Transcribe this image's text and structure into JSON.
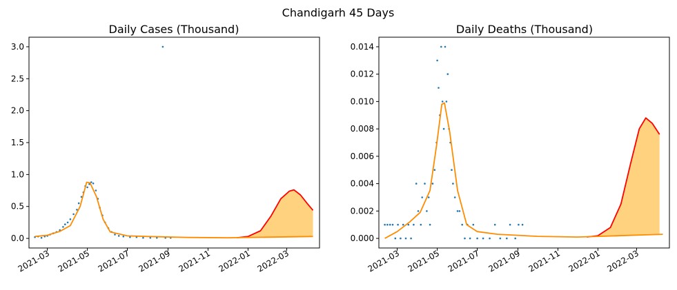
{
  "figure": {
    "suptitle": "Chandigarh 45 Days"
  },
  "colors": {
    "observed": "#1f77b4",
    "fit": "#ff8c00",
    "forecast": "#ff0000",
    "band": "#ffa500"
  },
  "chart_data": [
    {
      "type": "scatter",
      "title": "Daily Cases (Thousand)",
      "xlabel": "",
      "ylabel": "",
      "x_range": [
        "2021-02-01",
        "2022-04-20"
      ],
      "ylim": [
        -0.15,
        3.15
      ],
      "yticks": [
        0.0,
        0.5,
        1.0,
        1.5,
        2.0,
        2.5,
        3.0
      ],
      "ytick_labels": [
        "0.0",
        "0.5",
        "1.0",
        "1.5",
        "2.0",
        "2.5",
        "3.0"
      ],
      "xticks": [
        "2021-03-01",
        "2021-05-01",
        "2021-07-01",
        "2021-09-01",
        "2021-11-01",
        "2022-01-01",
        "2022-03-01"
      ],
      "xtick_labels": [
        "2021-03",
        "2021-05",
        "2021-07",
        "2021-09",
        "2021-11",
        "2022-01",
        "2022-03"
      ],
      "grid": false,
      "scatter_points": [
        [
          "2021-02-10",
          0.02
        ],
        [
          "2021-02-15",
          0.03
        ],
        [
          "2021-02-20",
          0.01
        ],
        [
          "2021-02-25",
          0.03
        ],
        [
          "2021-03-01",
          0.04
        ],
        [
          "2021-03-05",
          0.06
        ],
        [
          "2021-03-10",
          0.08
        ],
        [
          "2021-03-15",
          0.1
        ],
        [
          "2021-03-20",
          0.13
        ],
        [
          "2021-03-25",
          0.18
        ],
        [
          "2021-03-28",
          0.22
        ],
        [
          "2021-04-01",
          0.25
        ],
        [
          "2021-04-05",
          0.3
        ],
        [
          "2021-04-10",
          0.38
        ],
        [
          "2021-04-15",
          0.45
        ],
        [
          "2021-04-18",
          0.55
        ],
        [
          "2021-04-22",
          0.65
        ],
        [
          "2021-04-25",
          0.72
        ],
        [
          "2021-04-28",
          0.82
        ],
        [
          "2021-05-01",
          0.8
        ],
        [
          "2021-05-04",
          0.85
        ],
        [
          "2021-05-07",
          0.88
        ],
        [
          "2021-05-10",
          0.86
        ],
        [
          "2021-05-14",
          0.75
        ],
        [
          "2021-05-17",
          0.62
        ],
        [
          "2021-05-20",
          0.48
        ],
        [
          "2021-05-24",
          0.36
        ],
        [
          "2021-05-28",
          0.25
        ],
        [
          "2021-06-02",
          0.16
        ],
        [
          "2021-06-07",
          0.1
        ],
        [
          "2021-06-12",
          0.06
        ],
        [
          "2021-06-18",
          0.04
        ],
        [
          "2021-06-25",
          0.03
        ],
        [
          "2021-07-05",
          0.02
        ],
        [
          "2021-07-15",
          0.02
        ],
        [
          "2021-07-25",
          0.01
        ],
        [
          "2021-08-05",
          0.01
        ],
        [
          "2021-08-15",
          0.01
        ],
        [
          "2021-08-24",
          3.0
        ],
        [
          "2021-08-28",
          0.01
        ],
        [
          "2021-09-05",
          0.01
        ]
      ],
      "fit_line": [
        [
          "2021-02-10",
          0.03
        ],
        [
          "2021-03-01",
          0.05
        ],
        [
          "2021-03-20",
          0.11
        ],
        [
          "2021-04-05",
          0.2
        ],
        [
          "2021-04-20",
          0.5
        ],
        [
          "2021-04-30",
          0.88
        ],
        [
          "2021-05-05",
          0.87
        ],
        [
          "2021-05-15",
          0.65
        ],
        [
          "2021-05-25",
          0.3
        ],
        [
          "2021-06-05",
          0.1
        ],
        [
          "2021-07-01",
          0.04
        ],
        [
          "2021-08-01",
          0.03
        ],
        [
          "2021-10-01",
          0.015
        ],
        [
          "2021-12-01",
          0.01
        ],
        [
          "2022-04-10",
          0.03
        ]
      ],
      "forecast_upper": [
        [
          "2021-12-15",
          0.01
        ],
        [
          "2022-01-01",
          0.03
        ],
        [
          "2022-01-20",
          0.12
        ],
        [
          "2022-02-05",
          0.35
        ],
        [
          "2022-02-20",
          0.62
        ],
        [
          "2022-03-05",
          0.74
        ],
        [
          "2022-03-12",
          0.76
        ],
        [
          "2022-03-22",
          0.68
        ],
        [
          "2022-04-01",
          0.55
        ],
        [
          "2022-04-10",
          0.44
        ]
      ],
      "forecast_lower": [
        [
          "2021-12-15",
          0.01
        ],
        [
          "2022-01-15",
          0.012
        ],
        [
          "2022-02-15",
          0.016
        ],
        [
          "2022-03-15",
          0.022
        ],
        [
          "2022-04-10",
          0.03
        ]
      ]
    },
    {
      "type": "scatter",
      "title": "Daily Deaths (Thousand)",
      "xlabel": "",
      "ylabel": "",
      "x_range": [
        "2021-02-01",
        "2022-04-20"
      ],
      "ylim": [
        -0.0007,
        0.0147
      ],
      "yticks": [
        0.0,
        0.002,
        0.004,
        0.006,
        0.008,
        0.01,
        0.012,
        0.014
      ],
      "ytick_labels": [
        "0.000",
        "0.002",
        "0.004",
        "0.006",
        "0.008",
        "0.010",
        "0.012",
        "0.014"
      ],
      "xticks": [
        "2021-03-01",
        "2021-05-01",
        "2021-07-01",
        "2021-09-01",
        "2021-11-01",
        "2022-01-01",
        "2022-03-01"
      ],
      "xtick_labels": [
        "2021-03",
        "2021-05",
        "2021-07",
        "2021-09",
        "2021-11",
        "2022-01",
        "2022-03"
      ],
      "grid": false,
      "scatter_points": [
        [
          "2021-02-10",
          0.001
        ],
        [
          "2021-02-14",
          0.001
        ],
        [
          "2021-02-18",
          0.001
        ],
        [
          "2021-02-22",
          0.001
        ],
        [
          "2021-02-26",
          0.0
        ],
        [
          "2021-03-02",
          0.001
        ],
        [
          "2021-03-06",
          0.0
        ],
        [
          "2021-03-10",
          0.001
        ],
        [
          "2021-03-14",
          0.0
        ],
        [
          "2021-03-18",
          0.001
        ],
        [
          "2021-03-22",
          0.0
        ],
        [
          "2021-03-26",
          0.001
        ],
        [
          "2021-03-30",
          0.004
        ],
        [
          "2021-04-02",
          0.002
        ],
        [
          "2021-04-06",
          0.001
        ],
        [
          "2021-04-08",
          0.003
        ],
        [
          "2021-04-12",
          0.004
        ],
        [
          "2021-04-15",
          0.002
        ],
        [
          "2021-04-18",
          0.003
        ],
        [
          "2021-04-20",
          0.001
        ],
        [
          "2021-04-24",
          0.004
        ],
        [
          "2021-04-27",
          0.005
        ],
        [
          "2021-04-30",
          0.007
        ],
        [
          "2021-05-01",
          0.013
        ],
        [
          "2021-05-03",
          0.011
        ],
        [
          "2021-05-05",
          0.009
        ],
        [
          "2021-05-07",
          0.014
        ],
        [
          "2021-05-09",
          0.01
        ],
        [
          "2021-05-11",
          0.008
        ],
        [
          "2021-05-13",
          0.014
        ],
        [
          "2021-05-15",
          0.01
        ],
        [
          "2021-05-17",
          0.012
        ],
        [
          "2021-05-19",
          0.008
        ],
        [
          "2021-05-21",
          0.007
        ],
        [
          "2021-05-23",
          0.005
        ],
        [
          "2021-05-25",
          0.004
        ],
        [
          "2021-05-28",
          0.003
        ],
        [
          "2021-06-01",
          0.002
        ],
        [
          "2021-06-04",
          0.002
        ],
        [
          "2021-06-08",
          0.001
        ],
        [
          "2021-06-12",
          0.0
        ],
        [
          "2021-06-16",
          0.001
        ],
        [
          "2021-06-20",
          0.0
        ],
        [
          "2021-06-25",
          0.001
        ],
        [
          "2021-07-01",
          0.0
        ],
        [
          "2021-07-10",
          0.0
        ],
        [
          "2021-07-20",
          0.0
        ],
        [
          "2021-07-28",
          0.001
        ],
        [
          "2021-08-05",
          0.0
        ],
        [
          "2021-08-15",
          0.0
        ],
        [
          "2021-08-20",
          0.001
        ],
        [
          "2021-08-28",
          0.0
        ],
        [
          "2021-09-02",
          0.001
        ],
        [
          "2021-09-08",
          0.001
        ]
      ],
      "fit_line": [
        [
          "2021-02-10",
          0.0
        ],
        [
          "2021-03-01",
          0.0005
        ],
        [
          "2021-03-20",
          0.0012
        ],
        [
          "2021-04-05",
          0.0019
        ],
        [
          "2021-04-20",
          0.0035
        ],
        [
          "2021-04-30",
          0.0068
        ],
        [
          "2021-05-08",
          0.0098
        ],
        [
          "2021-05-12",
          0.0099
        ],
        [
          "2021-05-20",
          0.0078
        ],
        [
          "2021-06-01",
          0.0035
        ],
        [
          "2021-06-15",
          0.001
        ],
        [
          "2021-07-01",
          0.0005
        ],
        [
          "2021-08-01",
          0.0003
        ],
        [
          "2021-10-01",
          0.00015
        ],
        [
          "2021-12-01",
          0.0001
        ],
        [
          "2022-04-10",
          0.0003
        ]
      ],
      "forecast_upper": [
        [
          "2021-12-15",
          0.0001
        ],
        [
          "2022-01-01",
          0.0002
        ],
        [
          "2022-01-20",
          0.0008
        ],
        [
          "2022-02-05",
          0.0025
        ],
        [
          "2022-02-20",
          0.0055
        ],
        [
          "2022-03-05",
          0.008
        ],
        [
          "2022-03-15",
          0.0088
        ],
        [
          "2022-03-25",
          0.0084
        ],
        [
          "2022-04-05",
          0.0076
        ]
      ],
      "forecast_lower": [
        [
          "2021-12-15",
          0.0001
        ],
        [
          "2022-01-15",
          0.00012
        ],
        [
          "2022-02-15",
          0.00018
        ],
        [
          "2022-03-15",
          0.00025
        ],
        [
          "2022-04-05",
          0.0003
        ]
      ]
    }
  ]
}
